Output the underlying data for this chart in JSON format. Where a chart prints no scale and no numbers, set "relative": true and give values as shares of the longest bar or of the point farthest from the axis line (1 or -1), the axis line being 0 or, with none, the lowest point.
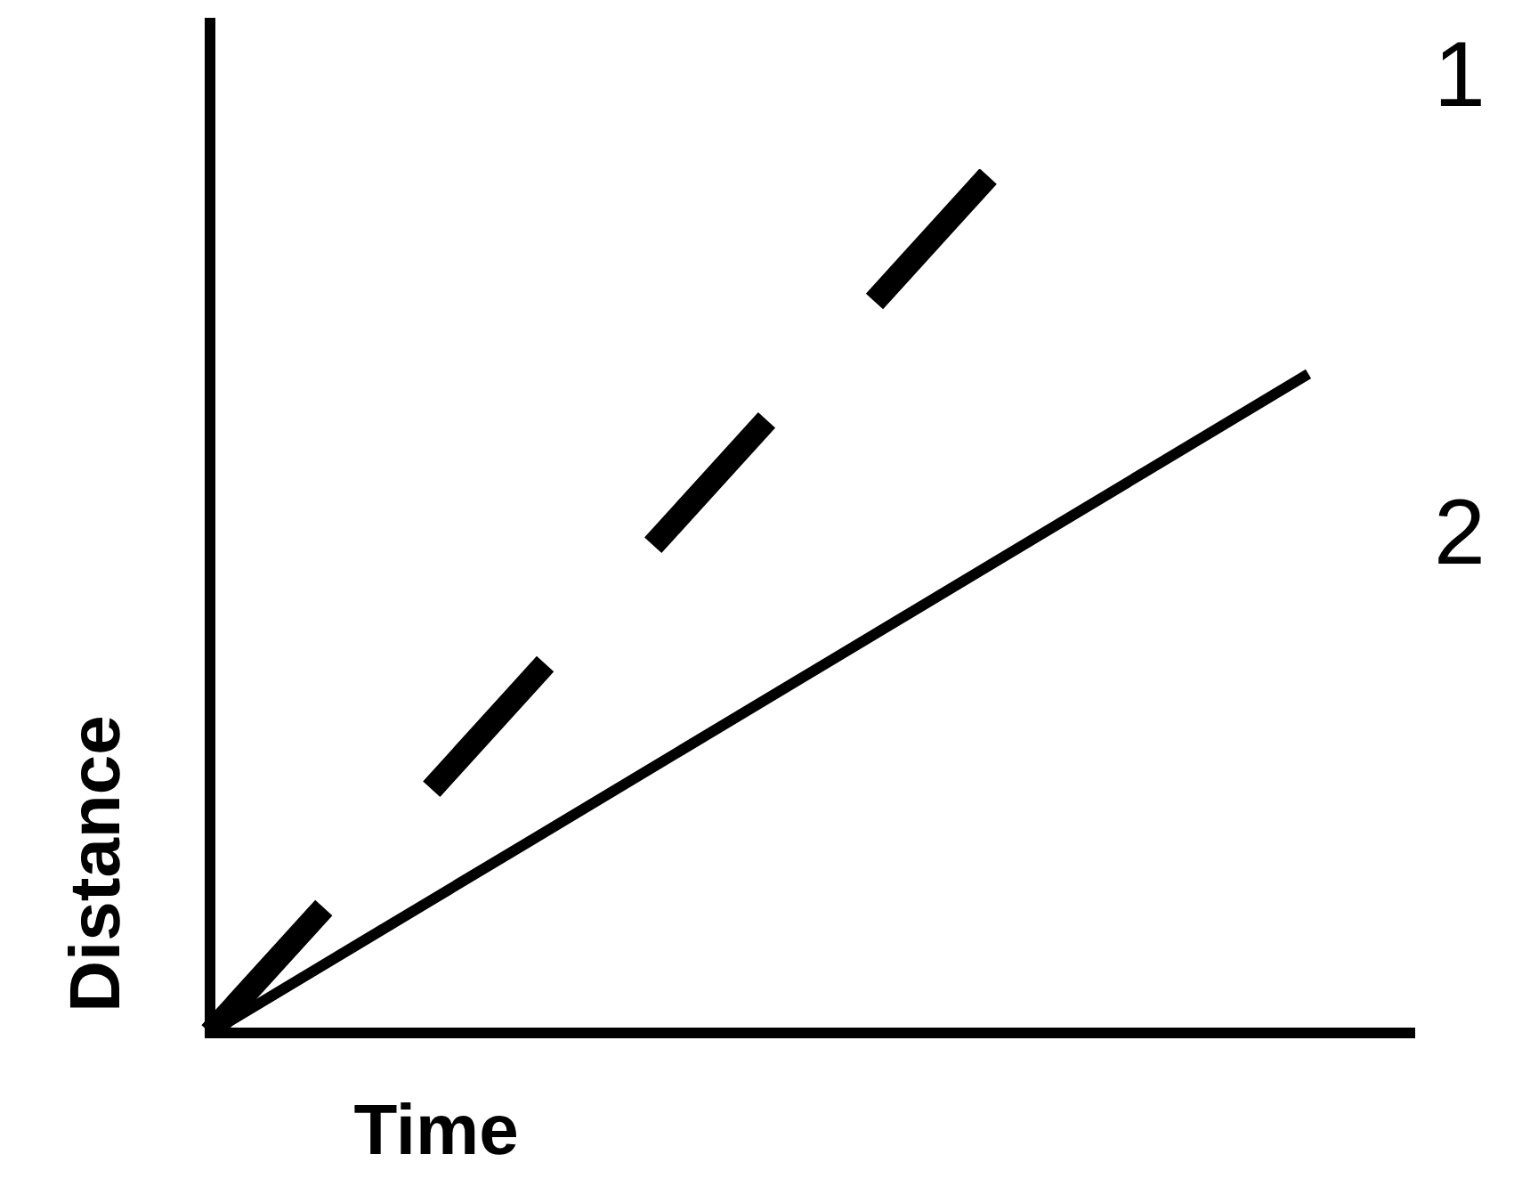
{
  "chart_data": {
    "type": "line",
    "relative": true,
    "xlabel": "Time",
    "ylabel": "Distance",
    "legend": false,
    "marker": "none",
    "categories": [
      null,
      null,
      null,
      null,
      null,
      null,
      null,
      null
    ],
    "series": [
      {
        "name": "1",
        "color": "#000000",
        "line_style": "dashed",
        "values": [
          0,
          null,
          0.4,
          0.6,
          null,
          1,
          null,
          null
        ]
      },
      {
        "name": "2",
        "color": "#000000",
        "line_style": "solid",
        "values": [
          0,
          0.109,
          0.218,
          0.327,
          0.436,
          0.545,
          0.654,
          0.763
        ]
      }
    ]
  }
}
